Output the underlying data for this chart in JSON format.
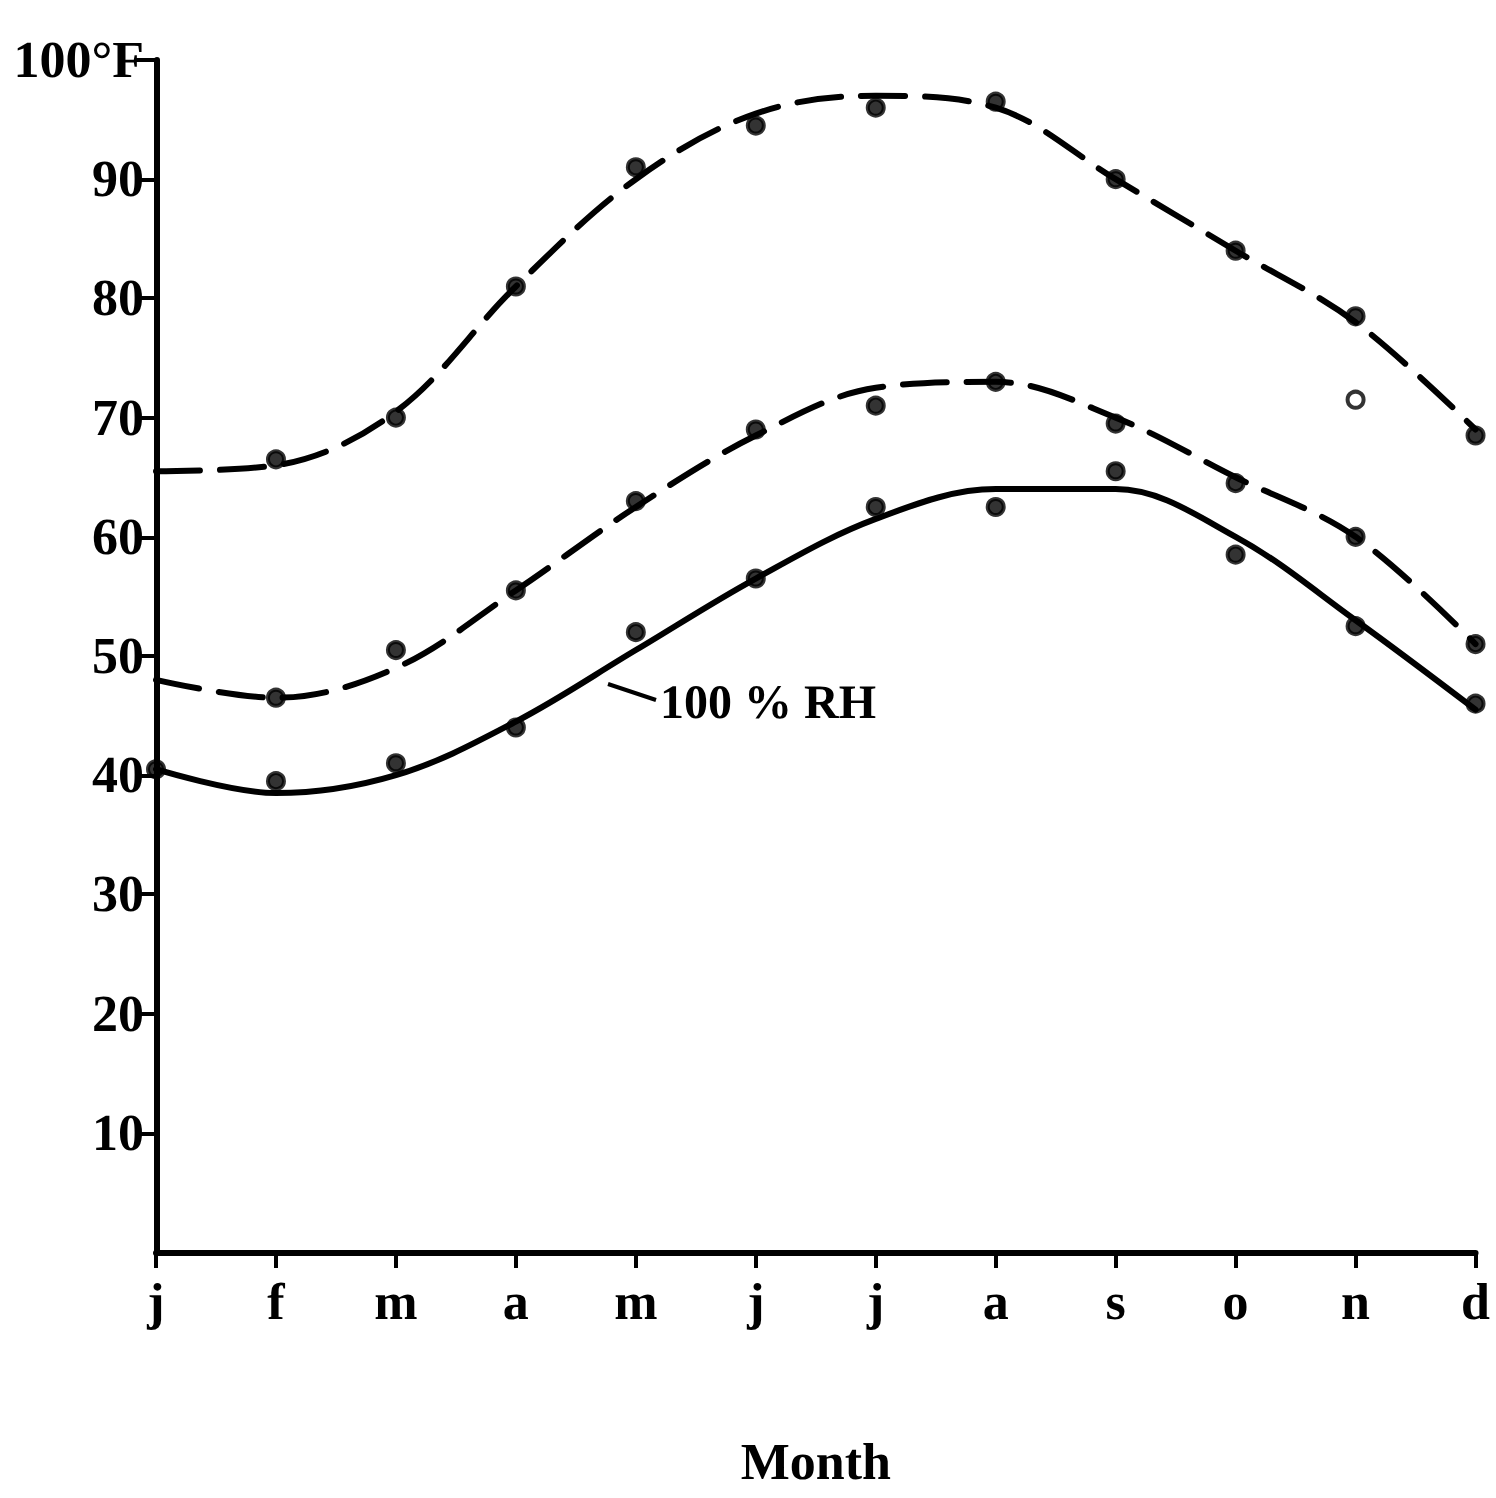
{
  "chart_data": {
    "type": "line",
    "xlabel": "Month",
    "categories": [
      "j",
      "f",
      "m",
      "a",
      "m",
      "j",
      "j",
      "a",
      "s",
      "o",
      "n",
      "d"
    ],
    "series": [
      {
        "color": "#000000",
        "line_style": "dashed",
        "marker": "none",
        "values": [
          65.5,
          66,
          70.5,
          81,
          90,
          95.5,
          97,
          96,
          90,
          84,
          78,
          69
        ]
      },
      {
        "color": "#000000",
        "line_style": "dashed",
        "marker": "none",
        "values": [
          48,
          46.5,
          49,
          55.5,
          62.5,
          68.5,
          72.5,
          73,
          70,
          65,
          60,
          51
        ]
      },
      {
        "color": "#000000",
        "line_style": "solid",
        "marker": "none",
        "values": [
          40.5,
          38.5,
          40,
          44.5,
          50.5,
          56.5,
          61.5,
          64,
          64,
          60,
          53,
          45.5
        ]
      },
      {
        "type": "scatter",
        "color": "#000000",
        "marker": "circle",
        "values": [
          null,
          66.5,
          70,
          81,
          91,
          94.5,
          96,
          96.5,
          90,
          84,
          78.5,
          68.5
        ]
      },
      {
        "type": "scatter",
        "color": "#000000",
        "marker": "circle",
        "values": [
          null,
          46.5,
          50.5,
          55.5,
          63,
          69,
          71,
          73,
          69.5,
          64.5,
          60,
          51
        ]
      },
      {
        "type": "scatter",
        "color": "#000000",
        "marker": "circle",
        "values": [
          40.5,
          39.5,
          41,
          44,
          52,
          56.5,
          62.5,
          62.5,
          65.5,
          58.5,
          52.5,
          46
        ]
      },
      {
        "type": "scatter",
        "color": "#ffffff",
        "marker": "circle",
        "values": [
          null,
          null,
          null,
          null,
          null,
          null,
          null,
          null,
          null,
          null,
          71.5,
          null
        ]
      }
    ],
    "ylim": [
      0,
      100
    ],
    "yticks": [
      10,
      20,
      30,
      40,
      50,
      60,
      70,
      80,
      90,
      {
        "value": 100,
        "label": "100°F"
      }
    ],
    "annotations": [
      "100 % RH"
    ],
    "grid": false
  }
}
